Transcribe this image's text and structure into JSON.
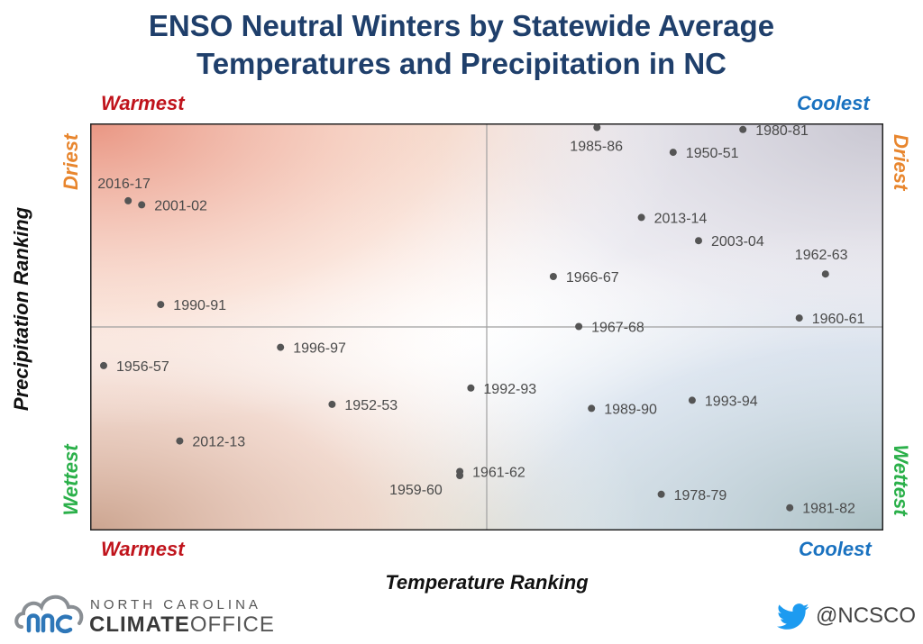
{
  "title_line1": "ENSO Neutral Winters by Statewide Average",
  "title_line2": "Temperatures and Precipitation in NC",
  "corners": {
    "top_left": "Warmest",
    "top_right": "Coolest",
    "bottom_left": "Warmest",
    "bottom_right": "Coolest",
    "left_top": "Driest",
    "left_bottom": "Wettest",
    "right_top": "Driest",
    "right_bottom": "Wettest"
  },
  "colors": {
    "title": "#1f3f6b",
    "warmest": "#c0141c",
    "coolest": "#1a72c0",
    "driest": "#e8862e",
    "wettest": "#2bb04a",
    "point": "#555555"
  },
  "logo": {
    "line1": "NORTH CAROLINA",
    "climate": "CLIMATE",
    "office": "OFFICE"
  },
  "social": {
    "icon": "twitter-bird-icon",
    "handle": "@NCSCO"
  },
  "chart_data": {
    "type": "scatter",
    "xlabel": "Temperature Ranking",
    "ylabel": "Precipitation Ranking",
    "xlim": [
      0,
      100
    ],
    "ylim": [
      0,
      100
    ],
    "grid": false,
    "points": [
      {
        "label": "2016-17",
        "x": 4.8,
        "y": 81.0
      },
      {
        "label": "2001-02",
        "x": 6.5,
        "y": 80.0
      },
      {
        "label": "1990-91",
        "x": 8.9,
        "y": 55.5
      },
      {
        "label": "1956-57",
        "x": 1.7,
        "y": 40.5
      },
      {
        "label": "1996-97",
        "x": 24.0,
        "y": 45.0
      },
      {
        "label": "1952-53",
        "x": 30.5,
        "y": 31.0
      },
      {
        "label": "2012-13",
        "x": 11.3,
        "y": 22.0
      },
      {
        "label": "1992-93",
        "x": 48.0,
        "y": 35.0
      },
      {
        "label": "1959-60",
        "x": 46.6,
        "y": 13.5
      },
      {
        "label": "1961-62",
        "x": 46.6,
        "y": 14.5
      },
      {
        "label": "1985-86",
        "x": 63.9,
        "y": 99.0
      },
      {
        "label": "1980-81",
        "x": 82.3,
        "y": 98.5
      },
      {
        "label": "1950-51",
        "x": 73.5,
        "y": 92.9
      },
      {
        "label": "2013-14",
        "x": 69.5,
        "y": 76.9
      },
      {
        "label": "2003-04",
        "x": 76.7,
        "y": 71.2
      },
      {
        "label": "1962-63",
        "x": 92.7,
        "y": 63.0
      },
      {
        "label": "1966-67",
        "x": 58.4,
        "y": 62.4
      },
      {
        "label": "1960-61",
        "x": 89.4,
        "y": 52.2
      },
      {
        "label": "1967-68",
        "x": 61.6,
        "y": 50.1
      },
      {
        "label": "1989-90",
        "x": 63.2,
        "y": 30.0
      },
      {
        "label": "1993-94",
        "x": 75.9,
        "y": 32.0
      },
      {
        "label": "1978-79",
        "x": 72.0,
        "y": 8.9
      },
      {
        "label": "1981-82",
        "x": 88.2,
        "y": 5.6
      }
    ]
  }
}
